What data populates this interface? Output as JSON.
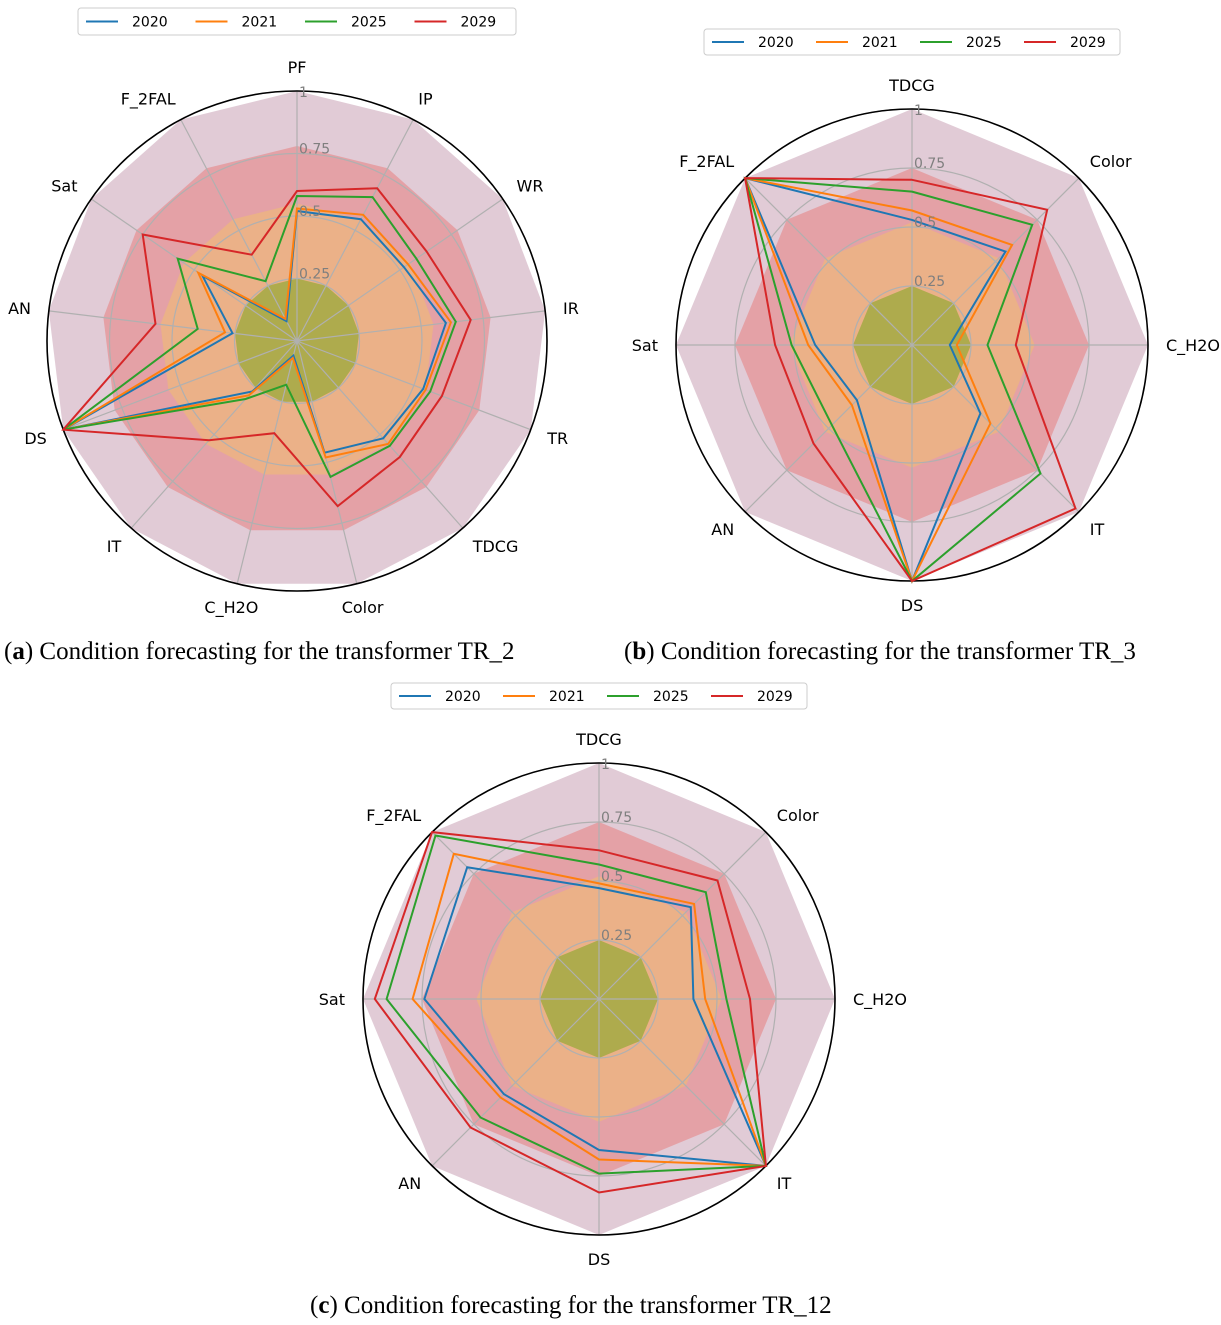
{
  "legend_years": [
    "2020",
    "2021",
    "2025",
    "2029"
  ],
  "colors": {
    "2020": "#1f77b4",
    "2021": "#ff7f0e",
    "2025": "#2ca02c",
    "2029": "#d62728",
    "zone_outer": "#c9a0b4",
    "zone_red": "#e88080",
    "zone_orange": "#f0c070",
    "zone_green": "#9aaa3a",
    "grid": "#b0b0b0",
    "tick": "#7f7f7f"
  },
  "chart_data": [
    {
      "id": "a",
      "type": "radar",
      "caption_letter": "a",
      "caption_text": " Condition forecasting for the transformer TR_2",
      "axes": [
        "PF",
        "IP",
        "WR",
        "IR",
        "TR",
        "TDCG",
        "Color",
        "C_H2O",
        "IT",
        "DS",
        "AN",
        "Sat",
        "F_2FAL"
      ],
      "rticks": [
        0.25,
        0.5,
        0.75,
        1
      ],
      "rtick_labels": [
        "0.25",
        "0.5",
        "0.75",
        "1"
      ],
      "zones": [
        1.0,
        0.78,
        0.55,
        0.25
      ],
      "series": [
        {
          "name": "2020",
          "values": [
            0.52,
            0.55,
            0.52,
            0.6,
            0.54,
            0.52,
            0.46,
            0.06,
            0.27,
            1.0,
            0.26,
            0.46,
            0.09
          ]
        },
        {
          "name": "2021",
          "values": [
            0.53,
            0.57,
            0.54,
            0.62,
            0.55,
            0.55,
            0.48,
            0.07,
            0.29,
            1.0,
            0.29,
            0.48,
            0.1
          ]
        },
        {
          "name": "2025",
          "values": [
            0.58,
            0.65,
            0.58,
            0.64,
            0.57,
            0.56,
            0.56,
            0.18,
            0.31,
            1.0,
            0.4,
            0.58,
            0.27
          ]
        },
        {
          "name": "2029",
          "values": [
            0.6,
            0.69,
            0.63,
            0.7,
            0.62,
            0.62,
            0.68,
            0.38,
            0.53,
            1.0,
            0.57,
            0.75,
            0.39
          ]
        }
      ]
    },
    {
      "id": "b",
      "type": "radar",
      "caption_letter": "b",
      "caption_text": " Condition forecasting for the transformer TR_3",
      "axes": [
        "TDCG",
        "Color",
        "C_H2O",
        "IT",
        "DS",
        "AN",
        "Sat",
        "F_2FAL"
      ],
      "rticks": [
        0.25,
        0.5,
        0.75,
        1
      ],
      "rtick_labels": [
        "0.25",
        "0.5",
        "0.75",
        "1"
      ],
      "zones": [
        1.0,
        0.75,
        0.52,
        0.25
      ],
      "series": [
        {
          "name": "2020",
          "values": [
            0.53,
            0.56,
            0.16,
            0.41,
            1.0,
            0.33,
            0.41,
            1.0
          ]
        },
        {
          "name": "2021",
          "values": [
            0.57,
            0.6,
            0.19,
            0.47,
            1.0,
            0.36,
            0.44,
            1.0
          ]
        },
        {
          "name": "2025",
          "values": [
            0.65,
            0.72,
            0.32,
            0.77,
            1.0,
            0.48,
            0.51,
            1.0
          ]
        },
        {
          "name": "2029",
          "values": [
            0.7,
            0.81,
            0.44,
            0.98,
            1.0,
            0.59,
            0.58,
            1.0
          ]
        }
      ]
    },
    {
      "id": "c",
      "type": "radar",
      "caption_letter": "c",
      "caption_text": " Condition forecasting for the transformer TR_12",
      "axes": [
        "TDCG",
        "Color",
        "C_H2O",
        "IT",
        "DS",
        "AN",
        "Sat",
        "F_2FAL"
      ],
      "rticks": [
        0.25,
        0.5,
        0.75,
        1
      ],
      "rtick_labels": [
        "0.25",
        "0.5",
        "0.75",
        "1"
      ],
      "zones": [
        1.0,
        0.75,
        0.52,
        0.25
      ],
      "series": [
        {
          "name": "2020",
          "values": [
            0.47,
            0.55,
            0.4,
            1.0,
            0.64,
            0.57,
            0.74,
            0.79
          ]
        },
        {
          "name": "2021",
          "values": [
            0.49,
            0.57,
            0.45,
            1.0,
            0.68,
            0.59,
            0.79,
            0.87
          ]
        },
        {
          "name": "2025",
          "values": [
            0.57,
            0.64,
            0.54,
            1.0,
            0.74,
            0.71,
            0.9,
            0.98
          ]
        },
        {
          "name": "2029",
          "values": [
            0.63,
            0.71,
            0.64,
            1.0,
            0.82,
            0.77,
            0.95,
            1.0
          ]
        }
      ]
    }
  ]
}
